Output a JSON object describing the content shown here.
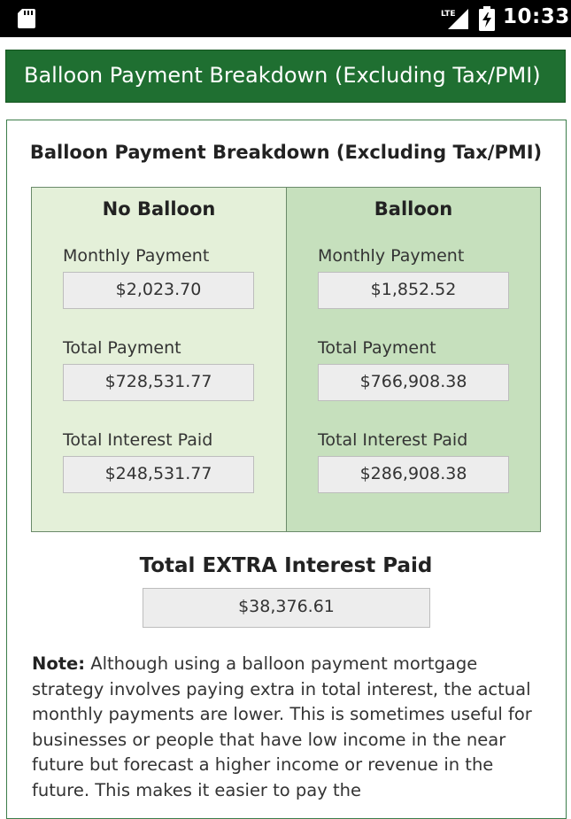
{
  "status_bar": {
    "time": "10:33",
    "network": "LTE",
    "icons": [
      "sd-card-icon",
      "signal-icon",
      "battery-charging-icon"
    ]
  },
  "header": {
    "title": "Balloon Payment Breakdown (Excluding Tax/PMI)",
    "background": "#1f6f31"
  },
  "card": {
    "title": "Balloon Payment Breakdown (Excluding Tax/PMI)"
  },
  "columns": [
    {
      "heading": "No Balloon",
      "monthly_label": "Monthly Payment",
      "monthly_value": "$2,023.70",
      "total_label": "Total Payment",
      "total_value": "$728,531.77",
      "interest_label": "Total Interest Paid",
      "interest_value": "$248,531.77",
      "background": "#e4f0d9"
    },
    {
      "heading": "Balloon",
      "monthly_label": "Monthly Payment",
      "monthly_value": "$1,852.52",
      "total_label": "Total Payment",
      "total_value": "$766,908.38",
      "interest_label": "Total Interest Paid",
      "interest_value": "$286,908.38",
      "background": "#c6e0bd"
    }
  ],
  "extra": {
    "label": "Total EXTRA Interest Paid",
    "value": "$38,376.61"
  },
  "note": {
    "label": "Note:",
    "text": " Although using a balloon payment mortgage strategy involves paying extra in total interest, the actual monthly payments are lower. This is sometimes useful for businesses or people that have low income in the near future but forecast a higher income or revenue in the future. This makes it easier to pay the"
  }
}
